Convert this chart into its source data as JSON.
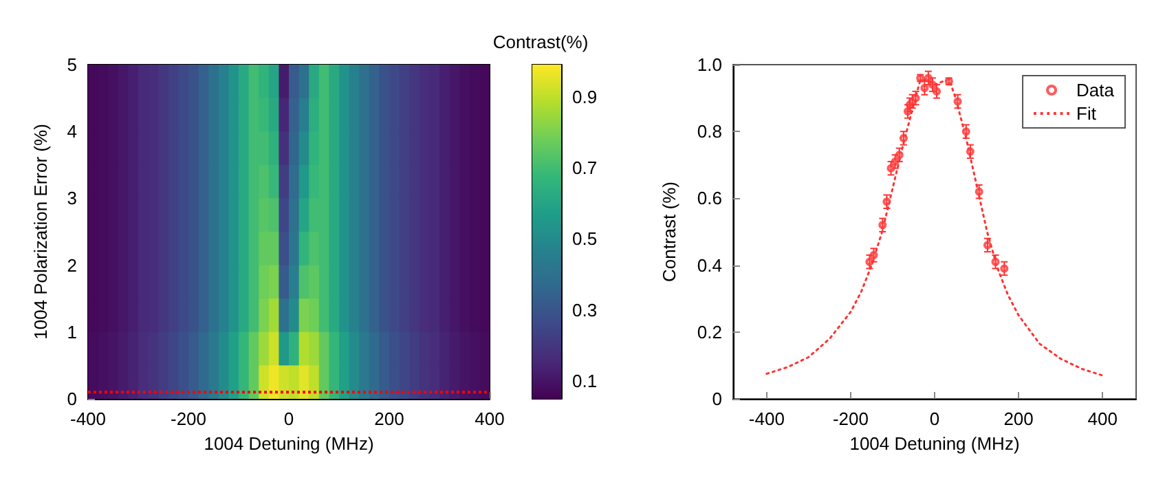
{
  "chart_data": [
    {
      "type": "heatmap",
      "xlabel": "1004 Detuning (MHz)",
      "ylabel": "1004 Polarization Error (%)",
      "clabel": "Contrast(%)",
      "x": [
        -390,
        -370,
        -350,
        -330,
        -310,
        -290,
        -270,
        -250,
        -230,
        -210,
        -190,
        -170,
        -150,
        -130,
        -110,
        -90,
        -70,
        -50,
        -30,
        -10,
        10,
        30,
        50,
        70,
        90,
        110,
        130,
        150,
        170,
        190,
        210,
        230,
        250,
        270,
        290,
        310,
        330,
        350,
        370,
        390
      ],
      "y": [
        4.75,
        4.25,
        3.75,
        3.25,
        2.75,
        2.25,
        1.75,
        1.25,
        0.75,
        0.25
      ],
      "cells": [
        [
          0.07,
          0.08,
          0.09,
          0.11,
          0.13,
          0.16,
          0.17,
          0.2,
          0.23,
          0.26,
          0.29,
          0.34,
          0.4,
          0.46,
          0.53,
          0.62,
          0.7,
          0.66,
          0.6,
          0.12,
          0.32,
          0.4,
          0.62,
          0.7,
          0.62,
          0.53,
          0.46,
          0.4,
          0.34,
          0.29,
          0.26,
          0.23,
          0.2,
          0.17,
          0.16,
          0.13,
          0.11,
          0.09,
          0.08,
          0.07
        ],
        [
          0.07,
          0.08,
          0.09,
          0.11,
          0.13,
          0.16,
          0.17,
          0.2,
          0.23,
          0.26,
          0.29,
          0.34,
          0.4,
          0.46,
          0.53,
          0.62,
          0.7,
          0.68,
          0.62,
          0.15,
          0.34,
          0.45,
          0.64,
          0.7,
          0.62,
          0.53,
          0.46,
          0.4,
          0.34,
          0.29,
          0.26,
          0.23,
          0.2,
          0.17,
          0.16,
          0.13,
          0.11,
          0.09,
          0.08,
          0.07
        ],
        [
          0.07,
          0.08,
          0.09,
          0.11,
          0.13,
          0.16,
          0.17,
          0.2,
          0.23,
          0.26,
          0.29,
          0.34,
          0.4,
          0.46,
          0.53,
          0.62,
          0.7,
          0.7,
          0.65,
          0.18,
          0.36,
          0.5,
          0.66,
          0.7,
          0.62,
          0.53,
          0.46,
          0.4,
          0.34,
          0.29,
          0.26,
          0.23,
          0.2,
          0.17,
          0.16,
          0.13,
          0.11,
          0.09,
          0.08,
          0.07
        ],
        [
          0.07,
          0.08,
          0.09,
          0.11,
          0.13,
          0.16,
          0.17,
          0.2,
          0.23,
          0.26,
          0.29,
          0.34,
          0.4,
          0.46,
          0.53,
          0.62,
          0.7,
          0.72,
          0.68,
          0.22,
          0.38,
          0.55,
          0.68,
          0.7,
          0.62,
          0.53,
          0.46,
          0.4,
          0.34,
          0.29,
          0.26,
          0.23,
          0.2,
          0.17,
          0.16,
          0.13,
          0.11,
          0.09,
          0.08,
          0.07
        ],
        [
          0.07,
          0.08,
          0.09,
          0.11,
          0.13,
          0.16,
          0.17,
          0.2,
          0.23,
          0.26,
          0.29,
          0.34,
          0.4,
          0.46,
          0.53,
          0.62,
          0.7,
          0.74,
          0.72,
          0.25,
          0.4,
          0.6,
          0.7,
          0.7,
          0.62,
          0.53,
          0.46,
          0.4,
          0.34,
          0.29,
          0.26,
          0.23,
          0.2,
          0.17,
          0.16,
          0.13,
          0.11,
          0.09,
          0.08,
          0.07
        ],
        [
          0.07,
          0.08,
          0.09,
          0.11,
          0.13,
          0.16,
          0.17,
          0.2,
          0.23,
          0.26,
          0.29,
          0.34,
          0.4,
          0.46,
          0.53,
          0.62,
          0.7,
          0.76,
          0.76,
          0.28,
          0.42,
          0.66,
          0.72,
          0.7,
          0.62,
          0.53,
          0.46,
          0.4,
          0.34,
          0.29,
          0.26,
          0.23,
          0.2,
          0.17,
          0.16,
          0.13,
          0.11,
          0.09,
          0.08,
          0.07
        ],
        [
          0.07,
          0.08,
          0.09,
          0.11,
          0.13,
          0.16,
          0.17,
          0.2,
          0.23,
          0.26,
          0.29,
          0.34,
          0.4,
          0.46,
          0.53,
          0.62,
          0.7,
          0.78,
          0.8,
          0.32,
          0.45,
          0.72,
          0.75,
          0.7,
          0.62,
          0.53,
          0.46,
          0.4,
          0.34,
          0.29,
          0.26,
          0.23,
          0.2,
          0.17,
          0.16,
          0.13,
          0.11,
          0.09,
          0.08,
          0.07
        ],
        [
          0.07,
          0.08,
          0.09,
          0.11,
          0.13,
          0.16,
          0.17,
          0.2,
          0.23,
          0.26,
          0.29,
          0.34,
          0.4,
          0.46,
          0.53,
          0.62,
          0.7,
          0.8,
          0.86,
          0.4,
          0.5,
          0.8,
          0.78,
          0.7,
          0.62,
          0.53,
          0.46,
          0.4,
          0.34,
          0.29,
          0.26,
          0.23,
          0.2,
          0.17,
          0.16,
          0.13,
          0.11,
          0.09,
          0.08,
          0.07
        ],
        [
          0.08,
          0.09,
          0.1,
          0.12,
          0.14,
          0.17,
          0.19,
          0.22,
          0.25,
          0.28,
          0.32,
          0.37,
          0.43,
          0.5,
          0.58,
          0.67,
          0.76,
          0.85,
          0.92,
          0.55,
          0.65,
          0.88,
          0.85,
          0.76,
          0.67,
          0.58,
          0.5,
          0.43,
          0.37,
          0.32,
          0.28,
          0.25,
          0.22,
          0.19,
          0.17,
          0.14,
          0.12,
          0.1,
          0.09,
          0.08
        ],
        [
          0.08,
          0.09,
          0.1,
          0.12,
          0.14,
          0.17,
          0.19,
          0.22,
          0.25,
          0.28,
          0.32,
          0.37,
          0.43,
          0.5,
          0.58,
          0.67,
          0.76,
          0.92,
          0.97,
          0.92,
          0.9,
          0.95,
          0.9,
          0.76,
          0.67,
          0.58,
          0.5,
          0.43,
          0.37,
          0.32,
          0.28,
          0.25,
          0.22,
          0.19,
          0.17,
          0.14,
          0.12,
          0.1,
          0.09,
          0.08
        ]
      ],
      "xlim": [
        -400,
        400
      ],
      "xticks": [
        -400,
        -200,
        0,
        200,
        400
      ],
      "ylim": [
        0,
        5
      ],
      "yticks": [
        0,
        1,
        2,
        3,
        4,
        5
      ],
      "clim": [
        0.05,
        0.99
      ],
      "cticks": [
        0.1,
        0.3,
        0.5,
        0.7,
        0.9
      ],
      "ref_lines": [
        {
          "axis": "y",
          "value": 0.1,
          "color": "#ff0000",
          "line_style": "dotted"
        }
      ]
    },
    {
      "type": "scatter",
      "xlabel": "1004 Detuning (MHz)",
      "ylabel": "Contrast (%)",
      "legend": "top right",
      "xlim": [
        -480,
        480
      ],
      "xticks": [
        -400,
        -200,
        0,
        200,
        400
      ],
      "ylim": [
        0,
        1
      ],
      "yticks": [
        0,
        0.2,
        0.4,
        0.6,
        0.8,
        {
          "value": 1,
          "label": "1.0"
        }
      ],
      "series": [
        {
          "name": "Data",
          "type": "scatter",
          "color": "#ff3333",
          "marker": "circle",
          "x": [
            -155,
            -145,
            -124,
            -114,
            -104,
            -94,
            -84,
            -74,
            -64,
            -59,
            -53,
            -45,
            -34,
            -24,
            -15,
            -5,
            5,
            34,
            55,
            75,
            85,
            106,
            126,
            145,
            166
          ],
          "values": [
            0.41,
            0.43,
            0.52,
            0.59,
            0.69,
            0.71,
            0.73,
            0.78,
            0.86,
            0.88,
            0.89,
            0.9,
            0.96,
            0.93,
            0.96,
            0.94,
            0.92,
            0.95,
            0.89,
            0.8,
            0.74,
            0.62,
            0.46,
            0.41,
            0.39
          ],
          "errors": [
            0.02,
            0.02,
            0.02,
            0.02,
            0.02,
            0.02,
            0.02,
            0.02,
            0.02,
            0.02,
            0.02,
            0.02,
            0.01,
            0.02,
            0.02,
            0.02,
            0.02,
            0.01,
            0.02,
            0.02,
            0.02,
            0.02,
            0.02,
            0.02,
            0.02
          ]
        },
        {
          "name": "Fit",
          "type": "line",
          "color": "#ff3333",
          "marker": "none",
          "line_style": "dotted",
          "x": [
            -400,
            -350,
            -300,
            -250,
            -200,
            -175,
            -150,
            -125,
            -100,
            -75,
            -50,
            -35,
            -20,
            0,
            20,
            35,
            50,
            75,
            100,
            125,
            150,
            175,
            200,
            250,
            300,
            350,
            400
          ],
          "values": [
            0.075,
            0.095,
            0.125,
            0.18,
            0.26,
            0.32,
            0.4,
            0.5,
            0.63,
            0.76,
            0.88,
            0.95,
            0.955,
            0.94,
            0.95,
            0.955,
            0.9,
            0.78,
            0.64,
            0.5,
            0.39,
            0.31,
            0.25,
            0.165,
            0.12,
            0.09,
            0.07
          ]
        }
      ]
    }
  ]
}
